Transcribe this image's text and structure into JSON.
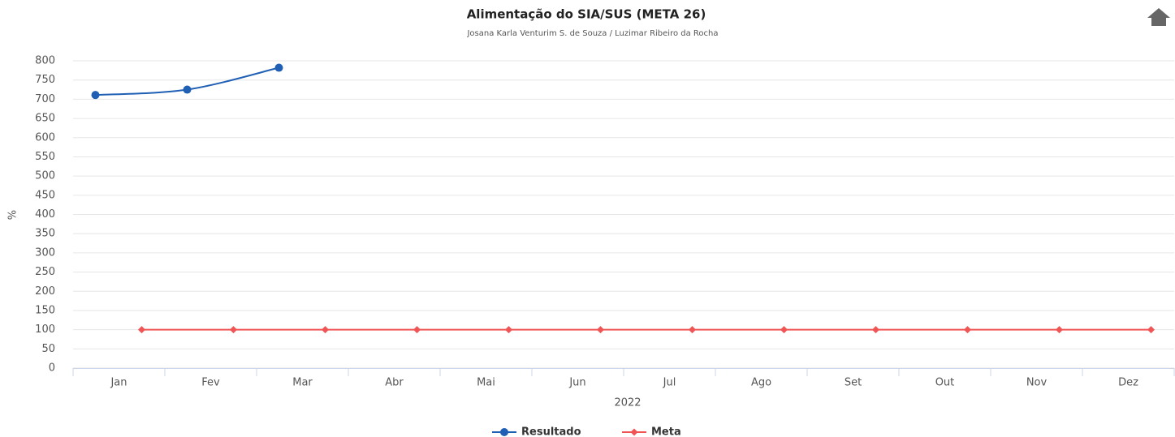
{
  "chart_data": {
    "type": "line",
    "title": "Alimentação do SIA/SUS (META 26)",
    "subtitle": "Josana Karla Venturim S. de Souza / Luzimar Ribeiro da Rocha",
    "y_label": "%",
    "x_label": "2022",
    "categories": [
      "Jan",
      "Fev",
      "Mar",
      "Abr",
      "Mai",
      "Jun",
      "Jul",
      "Ago",
      "Set",
      "Out",
      "Nov",
      "Dez"
    ],
    "series": [
      {
        "name": "Resultado",
        "color": "#1f5fb4",
        "values": [
          711,
          725,
          782,
          null,
          null,
          null,
          null,
          null,
          null,
          null,
          null,
          null
        ]
      },
      {
        "name": "Meta",
        "color": "#f05454",
        "values": [
          100,
          100,
          100,
          100,
          100,
          100,
          100,
          100,
          100,
          100,
          100,
          100
        ]
      }
    ],
    "ylim": [
      0,
      800
    ],
    "yticks": [
      0,
      50,
      100,
      150,
      200,
      250,
      300,
      350,
      400,
      450,
      500,
      550,
      600,
      650,
      700,
      750,
      800
    ],
    "grid": true
  }
}
